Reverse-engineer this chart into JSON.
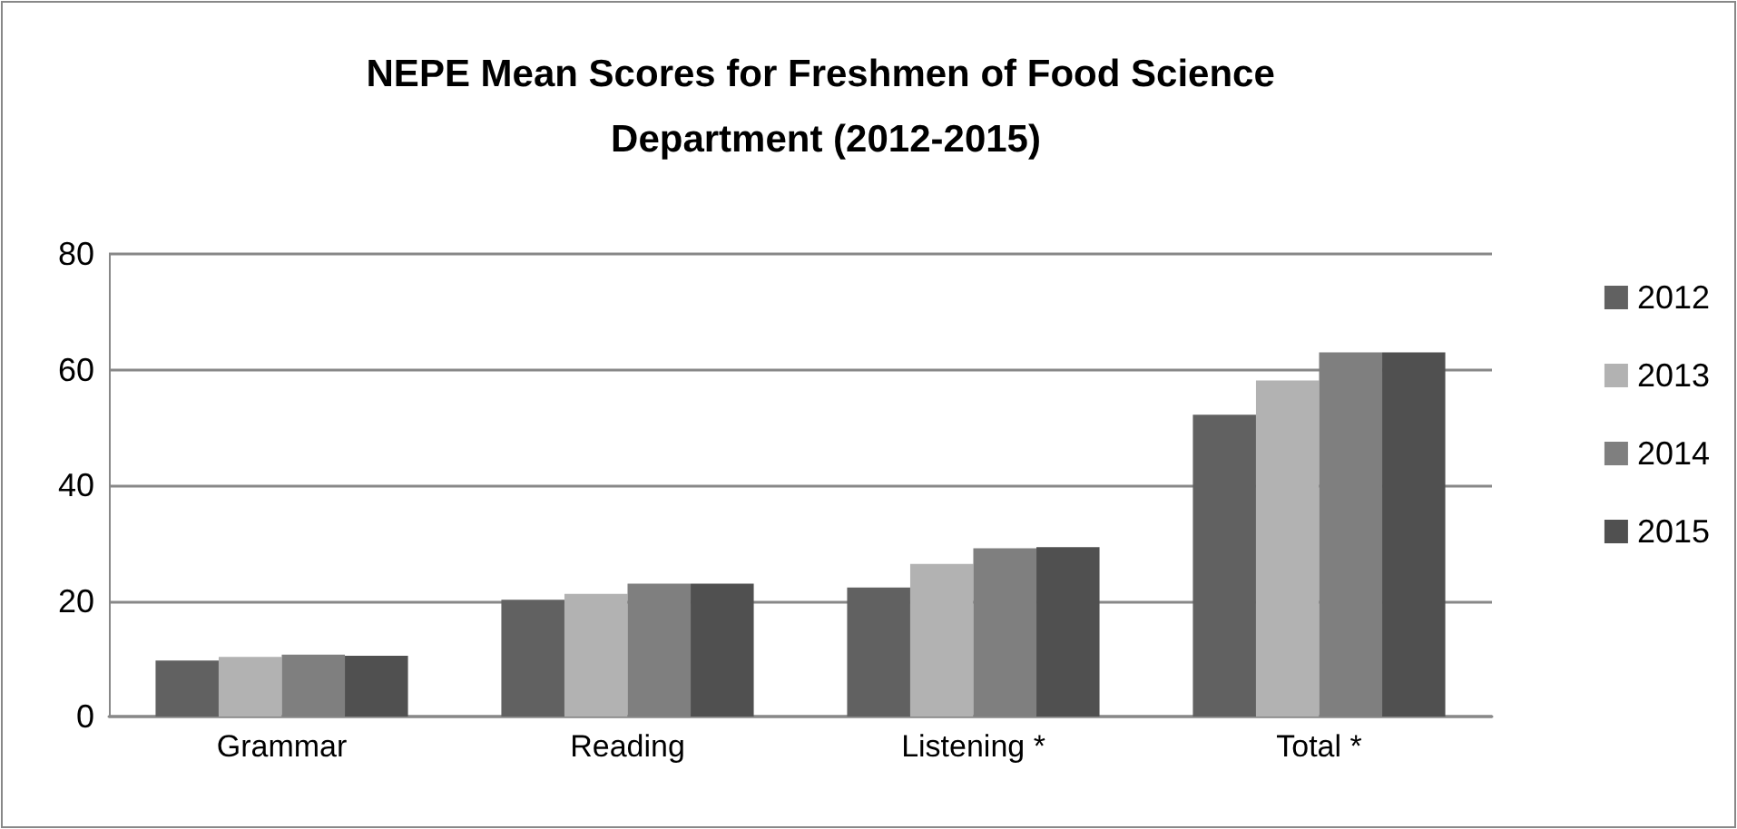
{
  "chart_data": {
    "type": "bar",
    "title": "NEPE Mean Scores for Freshmen of Food Science Department (2012-2015)",
    "categories": [
      "Grammar",
      "Reading",
      "Listening *",
      "Total *"
    ],
    "series": [
      {
        "name": "2012",
        "color": "#616161",
        "values": [
          9.7,
          20.2,
          22.3,
          52.2
        ]
      },
      {
        "name": "2013",
        "color": "#b2b2b2",
        "values": [
          10.3,
          21.2,
          26.4,
          58.1
        ]
      },
      {
        "name": "2014",
        "color": "#7f7f7f",
        "values": [
          10.7,
          23.0,
          29.1,
          63.0
        ]
      },
      {
        "name": "2015",
        "color": "#505050",
        "values": [
          10.5,
          23.0,
          29.3,
          63.0
        ]
      }
    ],
    "ylim": [
      0,
      80
    ],
    "yticks": [
      0,
      20,
      40,
      60,
      80
    ],
    "grid": "y",
    "legend": "right"
  }
}
